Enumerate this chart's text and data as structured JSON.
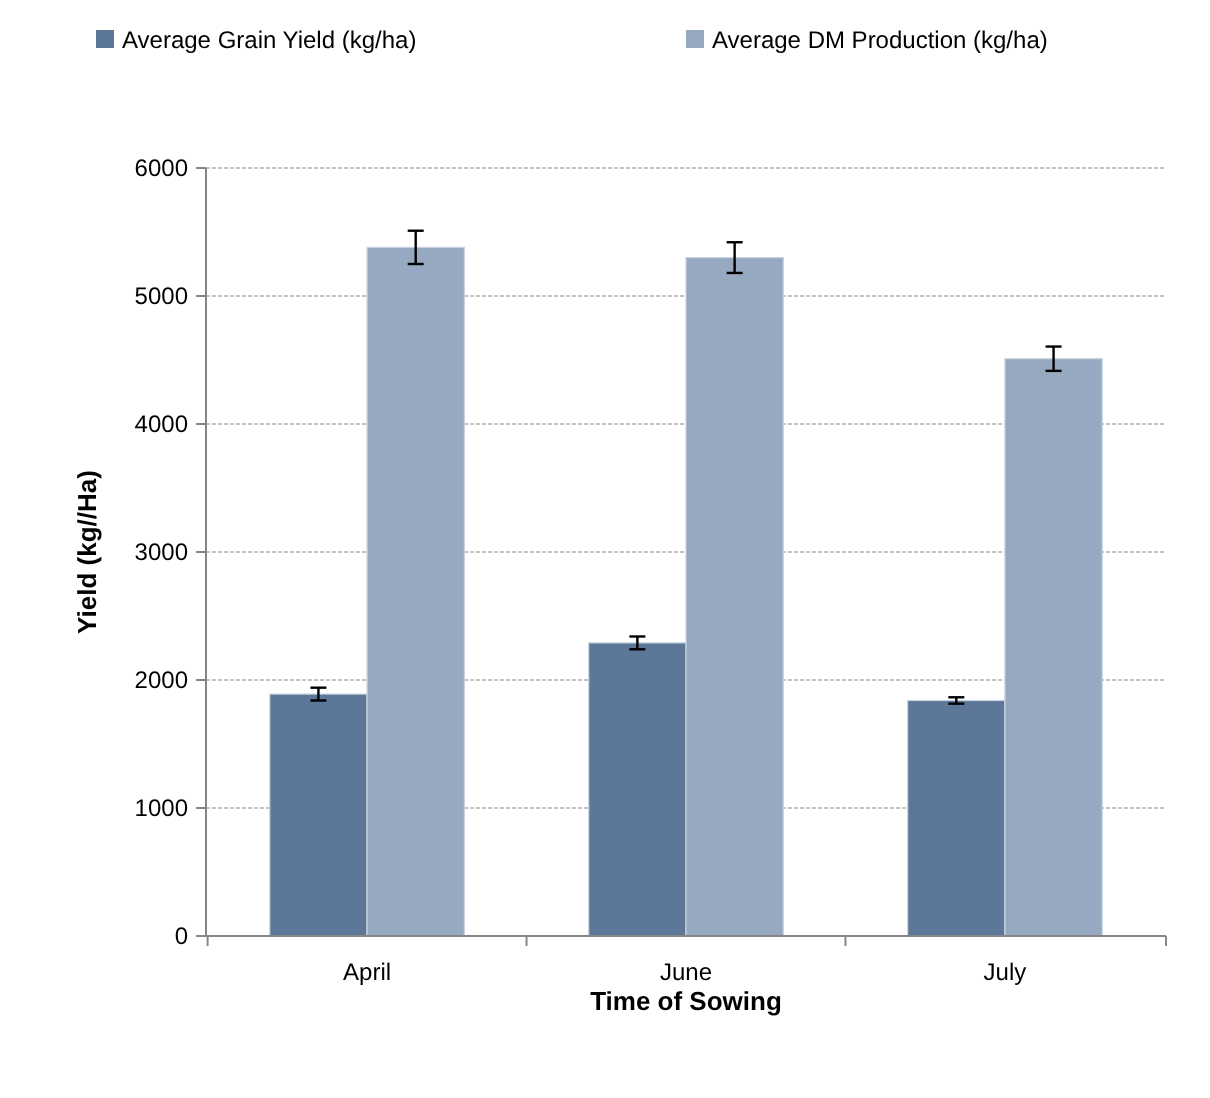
{
  "chart_data": {
    "type": "bar",
    "xlabel": "Time of Sowing",
    "ylabel": "Yield (kg//Ha)",
    "categories": [
      "April",
      "June",
      "July"
    ],
    "series": [
      {
        "name": "Average Grain Yield (kg/ha)",
        "color": "#5d7799",
        "values": [
          1890,
          2290,
          1840
        ],
        "errors": [
          50,
          50,
          25
        ]
      },
      {
        "name": "Average DM Production (kg/ha)",
        "color": "#96a9c1",
        "values": [
          5380,
          5300,
          4510
        ],
        "errors": [
          130,
          120,
          95
        ]
      }
    ],
    "ylim": [
      0,
      6000
    ],
    "yticks": [
      0,
      1000,
      2000,
      3000,
      4000,
      5000,
      6000
    ],
    "grid": "y",
    "legend": "top"
  }
}
